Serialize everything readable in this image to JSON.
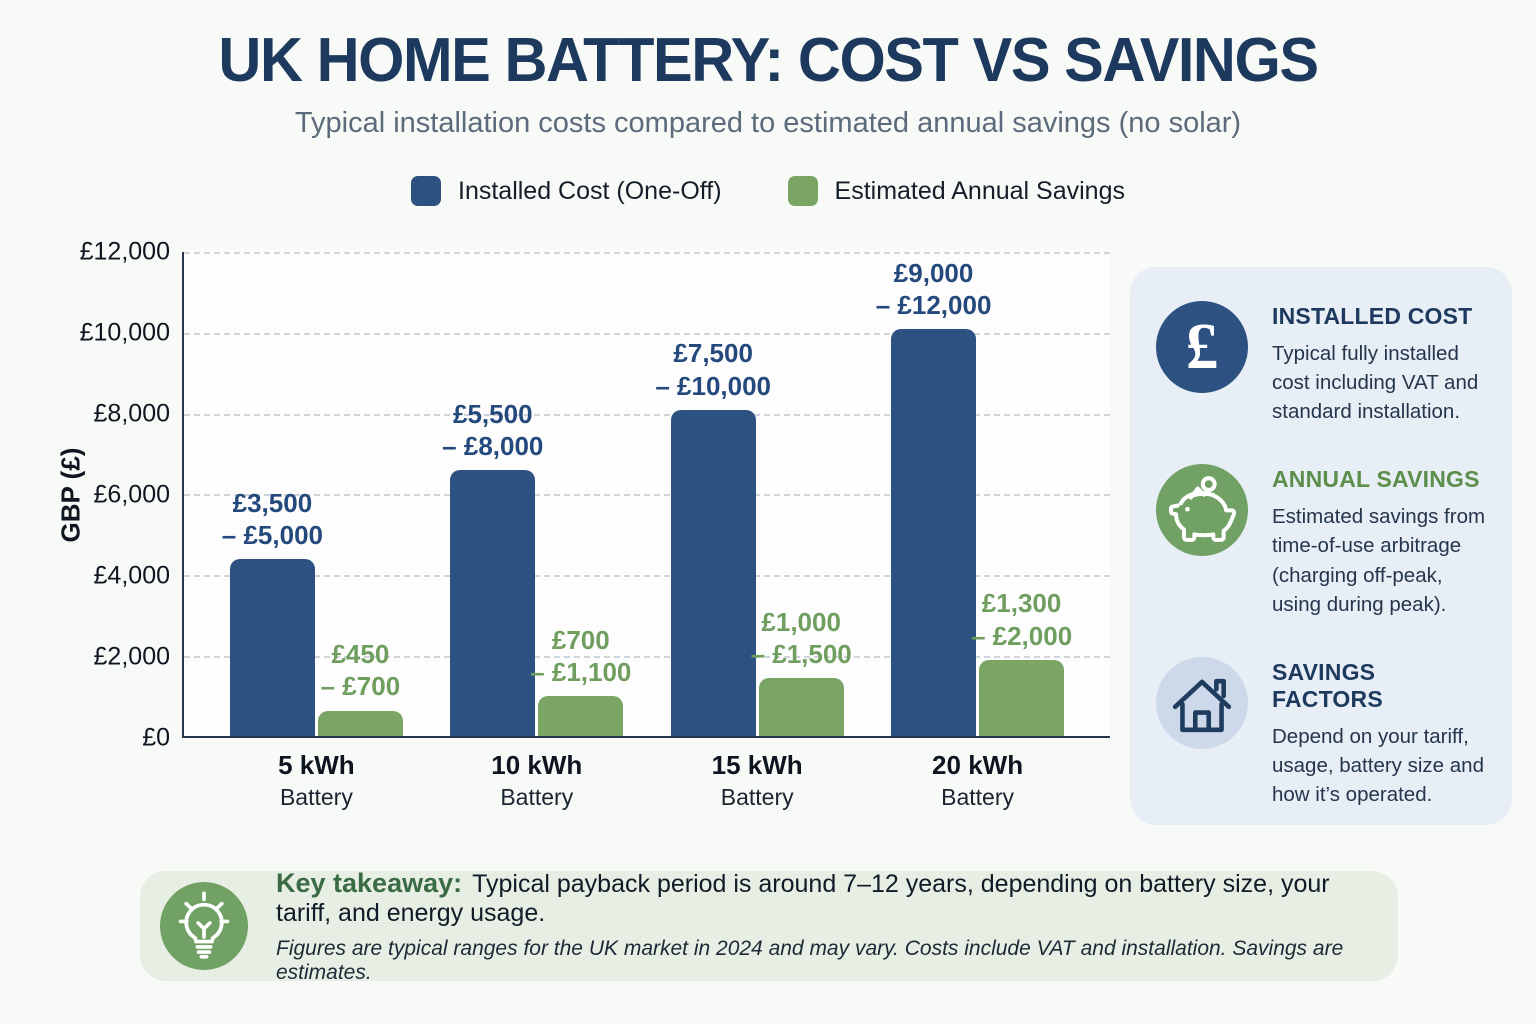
{
  "header": {
    "title": "UK HOME BATTERY: COST VS SAVINGS",
    "subtitle": "Typical installation costs compared to estimated annual savings (no solar)"
  },
  "legend": {
    "items": [
      {
        "label": "Installed Cost (One-Off)",
        "color": "#2d5181"
      },
      {
        "label": "Estimated Annual Savings",
        "color": "#7aa565"
      }
    ]
  },
  "chart_data": {
    "type": "bar",
    "title": "UK HOME BATTERY: COST VS SAVINGS",
    "subtitle": "Typical installation costs compared to estimated annual savings (no solar)",
    "ylabel": "GBP (£)",
    "ylim": [
      0,
      12000
    ],
    "ytick_labels": [
      "£12,000",
      "£10,000",
      "£8,000",
      "£6,000",
      "£4,000",
      "£2,000",
      "£0"
    ],
    "grid": "horizontal-dashed",
    "legend_position": "top",
    "categories": [
      "5 kWh",
      "10 kWh",
      "15 kWh",
      "20 kWh"
    ],
    "category_sublabel": "Battery",
    "series": [
      {
        "name": "Installed Cost (One-Off)",
        "color": "#2d5181",
        "range_labels": [
          "£3,500 – £5,000",
          "£5,500 – £8,000",
          "£7,500 – £10,000",
          "£9,000 – £12,000"
        ],
        "ranges_gbp": [
          [
            3500,
            5000
          ],
          [
            5500,
            8000
          ],
          [
            7500,
            10000
          ],
          [
            9000,
            12000
          ]
        ],
        "bar_values_gbp": [
          4400,
          6600,
          8100,
          10100
        ]
      },
      {
        "name": "Estimated Annual Savings",
        "color": "#7aa565",
        "range_labels": [
          "£450 – £700",
          "£700 – £1,100",
          "£1,000 – £1,500",
          "£1,300 – £2,000"
        ],
        "ranges_gbp": [
          [
            450,
            700
          ],
          [
            700,
            1100
          ],
          [
            1000,
            1500
          ],
          [
            1300,
            2000
          ]
        ],
        "bar_values_gbp": [
          640,
          1000,
          1450,
          1900
        ]
      }
    ]
  },
  "sidebar": {
    "cards": [
      {
        "icon": "pound-icon",
        "icon_bg": "#2d5181",
        "heading": "INSTALLED COST",
        "heading_color": "#1d3a5e",
        "body": "Typical fully installed cost including VAT and standard installation."
      },
      {
        "icon": "piggy-bank-icon",
        "icon_bg": "#71a164",
        "heading": "ANNUAL SAVINGS",
        "heading_color": "#5c8e4c",
        "body": "Estimated savings from time-of-use arbitrage (charging off-peak, using during peak)."
      },
      {
        "icon": "house-icon",
        "icon_bg": "#cdd9ea",
        "heading": "SAVINGS FACTORS",
        "heading_color": "#1d3a5e",
        "body": "Depend on your tariff, usage, battery size and how it’s operated."
      }
    ]
  },
  "footer": {
    "label": "Key takeaway:",
    "text": "Typical payback period is around 7–12 years, depending on battery size, your tariff, and energy usage.",
    "note": "Figures are typical ranges for the UK market in 2024 and may vary. Costs include VAT and installation. Savings are estimates."
  }
}
